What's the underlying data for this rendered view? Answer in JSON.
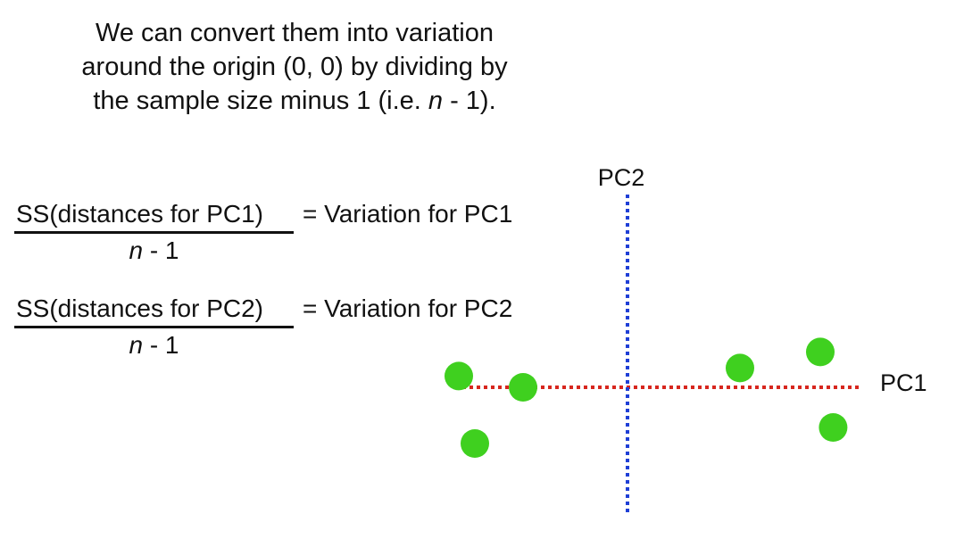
{
  "caption": {
    "line1": "We can convert them into variation",
    "line2": "around the origin (0, 0) by dividing by",
    "line3_prefix": "the sample size minus 1 (i.e. ",
    "line3_italic": "n",
    "line3_suffix": " - 1)."
  },
  "formulas": [
    {
      "numerator": "SS(distances for PC1)",
      "equals": "= Variation for PC1",
      "denominator_italic": "n",
      "denominator_rest": " - 1"
    },
    {
      "numerator": "SS(distances for PC2)",
      "equals": "= Variation for PC2",
      "denominator_italic": "n",
      "denominator_rest": " - 1"
    }
  ],
  "plot": {
    "pc1_label": "PC1",
    "pc2_label": "PC2",
    "pc1_color": "#d7261e",
    "pc2_color": "#1f3fd6",
    "point_color": "#3fd01f",
    "points": [
      {
        "x": -10.5,
        "y": 0.7
      },
      {
        "x": -6.5,
        "y": 0.0
      },
      {
        "x": -9.5,
        "y": -3.5
      },
      {
        "x": 7.0,
        "y": 1.2
      },
      {
        "x": 12.0,
        "y": 2.2
      },
      {
        "x": 12.8,
        "y": -2.5
      }
    ]
  }
}
